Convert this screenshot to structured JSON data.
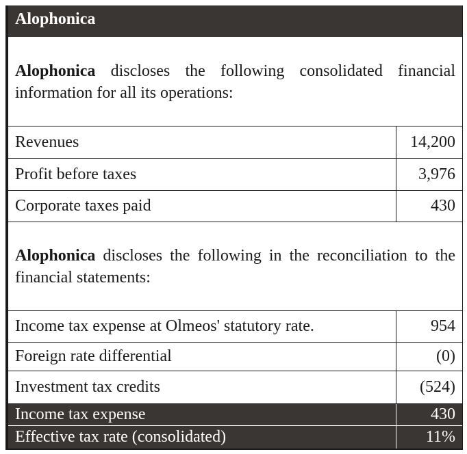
{
  "company_name": "Alophonica",
  "intro": {
    "bold": "Alophonica",
    "text": " discloses the following consolidated financial information for all its operations:"
  },
  "financials": [
    {
      "label": "Revenues",
      "value": "14,200"
    },
    {
      "label": "Profit before taxes",
      "value": "3,976"
    },
    {
      "label": "Corporate taxes paid",
      "value": "430"
    }
  ],
  "reconciliation_intro": {
    "bold": "Alophonica",
    "text": " discloses the following in the reconciliation to the financial statements:"
  },
  "reconciliation": [
    {
      "label": "Income tax expense at Olmeos' statutory rate.",
      "value": "954"
    },
    {
      "label": "Foreign rate differential",
      "value": "(0)"
    },
    {
      "label": "Investment tax credits",
      "value": "(524)"
    }
  ],
  "totals": [
    {
      "label": "Income tax expense",
      "value": "430"
    },
    {
      "label": "Effective tax rate (consolidated)",
      "value": "11%"
    }
  ],
  "colors": {
    "header_bg": "#3a3634",
    "text": "#1a1a1a"
  }
}
